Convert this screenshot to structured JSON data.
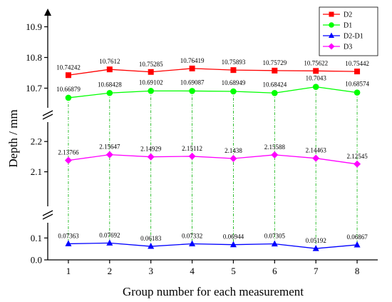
{
  "chart_data": {
    "type": "line",
    "xlabel": "Group number for each measurement",
    "ylabel": "Depth / mm",
    "x": [
      1,
      2,
      3,
      4,
      5,
      6,
      7,
      8
    ],
    "x_ticks": [
      "1",
      "2",
      "3",
      "4",
      "5",
      "6",
      "7",
      "8"
    ],
    "x_range": [
      0.5,
      8.5
    ],
    "broken_y_axis": true,
    "grid": false,
    "vertical_drop_lines": true,
    "legend_position": "top-right",
    "segments": [
      {
        "range": [
          0.0,
          0.15
        ],
        "ticks": [
          0.0,
          0.1
        ],
        "tick_labels": [
          "0.0",
          "0.1"
        ]
      },
      {
        "range": [
          2.0,
          2.25
        ],
        "ticks": [
          2.1,
          2.2
        ],
        "tick_labels": [
          "2.1",
          "2.2"
        ]
      },
      {
        "range": [
          10.65,
          10.95
        ],
        "ticks": [
          10.7,
          10.8,
          10.9
        ],
        "tick_labels": [
          "10.7",
          "10.8",
          "10.9"
        ]
      }
    ],
    "series": [
      {
        "name": "D2",
        "color": "#ff0000",
        "marker": "square",
        "segment": 2,
        "values": [
          10.74242,
          10.7612,
          10.75285,
          10.76419,
          10.75893,
          10.75729,
          10.75622,
          10.75442
        ],
        "labels": [
          "10.74242",
          "10.7612",
          "10.75285",
          "10.76419",
          "10.75893",
          "10.75729",
          "10.75622",
          "10.75442"
        ]
      },
      {
        "name": "D1",
        "color": "#00ff00",
        "marker": "circle",
        "segment": 2,
        "values": [
          10.66879,
          10.68428,
          10.69102,
          10.69087,
          10.68949,
          10.68424,
          10.7043,
          10.68574
        ],
        "labels": [
          "10.66879",
          "10.68428",
          "10.69102",
          "10.69087",
          "10.68949",
          "10.68424",
          "10.7043",
          "10.68574"
        ]
      },
      {
        "name": "D2-D1",
        "color": "#0000ff",
        "marker": "triangle",
        "segment": 0,
        "values": [
          0.07363,
          0.07692,
          0.06183,
          0.07332,
          0.06944,
          0.07305,
          0.05192,
          0.06867
        ],
        "labels": [
          "0.07363",
          "0.07692",
          "0.06183",
          "0.07332",
          "0.06944",
          "0.07305",
          "0.05192",
          "0.06867"
        ]
      },
      {
        "name": "D3",
        "color": "#ff00ff",
        "marker": "diamond",
        "segment": 1,
        "values": [
          2.13766,
          2.15647,
          2.14929,
          2.15112,
          2.1438,
          2.15588,
          2.14463,
          2.12545
        ],
        "labels": [
          "2.13766",
          "2.15647",
          "2.14929",
          "2.15112",
          "2.1438",
          "2.15588",
          "2.14463",
          "2.12545"
        ]
      }
    ]
  }
}
